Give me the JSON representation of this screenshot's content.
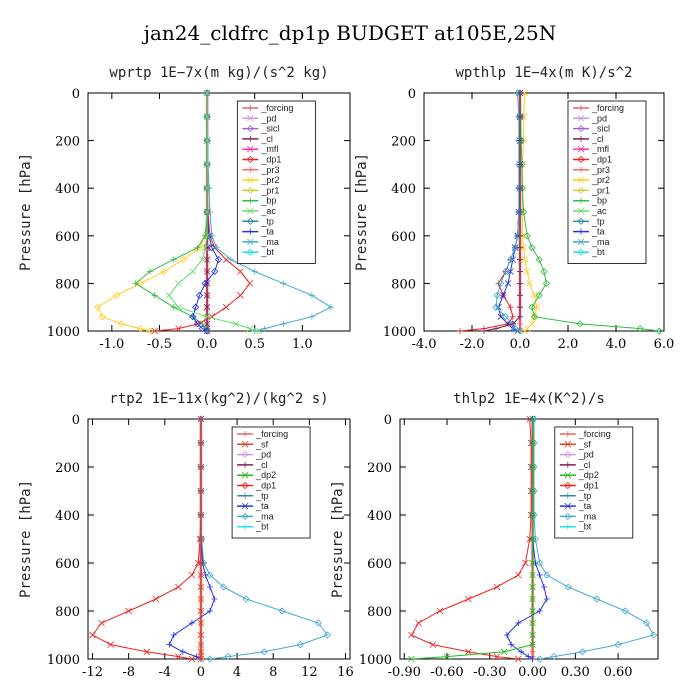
{
  "figure_title": "jan24_cldfrc_dp1p  BUDGET at105E,25N",
  "colors": {
    "_forcing": "#e06666",
    "_pd": "#cc99dd",
    "_sicl": "#9966cc",
    "_cl": "#7f1d5a",
    "_mfl": "#ff33aa",
    "_dp1": "#ee2222",
    "_pr3": "#ff6666",
    "_pr2": "#ffcc22",
    "_pr1": "#cccc33",
    "_bp": "#33bb44",
    "_ac": "#66dd66",
    "_tp": "#3388aa",
    "_ta": "#2233dd",
    "_ma": "#44aacc",
    "_bt": "#22ddee",
    "_sf": "#dd4422",
    "_dp2": "#22bb22"
  },
  "chart_data": [
    {
      "type": "line",
      "title": "wprtp   1E−7x(m kg)/(s^2 kg)",
      "ylabel": "Pressure [hPa]",
      "xlim": [
        -1.25,
        1.5
      ],
      "ylim": [
        1000,
        0
      ],
      "xticks": [
        -1.0,
        -0.5,
        0.0,
        0.5,
        1.0
      ],
      "xtick_labels": [
        "-1.0",
        "-0.5",
        "0.0",
        "0.5",
        "1.0"
      ],
      "yticks": [
        0,
        200,
        400,
        600,
        800,
        1000
      ],
      "legend_x": 0.57,
      "legend": [
        "_forcing",
        "_pd",
        "_sicl",
        "_cl",
        "_mfl",
        "_dp1",
        "_pr3",
        "_pr2",
        "_pr1",
        "_bp",
        "_ac",
        "_tp",
        "_ta",
        "_ma",
        "_bt"
      ],
      "pressure": [
        0,
        100,
        200,
        300,
        400,
        500,
        600,
        650,
        700,
        750,
        800,
        850,
        900,
        940,
        970,
        990,
        1000
      ],
      "series": [
        {
          "name": "_forcing",
          "values": [
            0,
            0,
            0,
            0,
            0,
            0,
            0,
            0,
            0,
            0,
            0,
            0,
            0,
            0,
            0,
            0,
            0
          ]
        },
        {
          "name": "_cl",
          "values": [
            0,
            0,
            0,
            0,
            0,
            0,
            0,
            0,
            0,
            0,
            0,
            0,
            0,
            0,
            0,
            0,
            0
          ]
        },
        {
          "name": "_pr2",
          "values": [
            0,
            0,
            0,
            0,
            0,
            0,
            -0.02,
            -0.08,
            -0.25,
            -0.45,
            -0.7,
            -0.95,
            -1.15,
            -1.1,
            -0.9,
            -0.7,
            -0.6
          ]
        },
        {
          "name": "_bp",
          "values": [
            0,
            0,
            0,
            0,
            0,
            0,
            -0.02,
            -0.1,
            -0.35,
            -0.6,
            -0.75,
            -0.55,
            -0.35,
            -0.15,
            -0.05,
            0,
            0
          ]
        },
        {
          "name": "_dp1",
          "values": [
            0,
            0,
            0,
            0,
            0,
            0.01,
            0.03,
            0.08,
            0.2,
            0.35,
            0.45,
            0.35,
            0.2,
            0.05,
            -0.1,
            -0.3,
            -0.55
          ]
        },
        {
          "name": "_ta",
          "values": [
            0,
            0,
            0,
            0,
            0,
            0,
            0.02,
            0.05,
            0.12,
            0.08,
            -0.02,
            -0.08,
            -0.12,
            -0.15,
            -0.1,
            -0.05,
            0
          ]
        },
        {
          "name": "_ma",
          "values": [
            0,
            0,
            0.01,
            0.01,
            0.02,
            0.03,
            0.05,
            0.1,
            0.25,
            0.5,
            0.8,
            1.1,
            1.3,
            1.1,
            0.8,
            0.6,
            0.5
          ]
        },
        {
          "name": "_ac",
          "values": [
            0,
            0,
            0,
            0,
            0,
            0,
            0,
            -0.02,
            -0.05,
            -0.15,
            -0.3,
            -0.4,
            -0.3,
            0,
            0.3,
            0.45,
            0.55
          ]
        }
      ]
    },
    {
      "type": "line",
      "title": "wpthlp   1E−4x(m K)/s^2",
      "ylabel": "Pressure [hPa]",
      "xlim": [
        -4.0,
        6.0
      ],
      "ylim": [
        1000,
        0
      ],
      "xticks": [
        -4,
        -2,
        0,
        2,
        4,
        6
      ],
      "xtick_labels": [
        "-4.0",
        "-2.0",
        "0.0",
        "2.0",
        "4.0",
        "6.0"
      ],
      "yticks": [
        0,
        200,
        400,
        600,
        800,
        1000
      ],
      "legend_x": 0.6,
      "legend": [
        "_forcing",
        "_pd",
        "_sicl",
        "_cl",
        "_mfl",
        "_dp1",
        "_pr3",
        "_pr2",
        "_pr1",
        "_bp",
        "_ac",
        "_tp",
        "_ta",
        "_ma",
        "_bt"
      ],
      "pressure": [
        0,
        100,
        200,
        300,
        400,
        500,
        600,
        650,
        700,
        750,
        800,
        850,
        900,
        940,
        970,
        990,
        1000
      ],
      "series": [
        {
          "name": "_forcing",
          "values": [
            0,
            0,
            0,
            0,
            0,
            0,
            0,
            0,
            0,
            0,
            0,
            0,
            0,
            0,
            0,
            0,
            0
          ]
        },
        {
          "name": "_pr2",
          "values": [
            0.2,
            0.15,
            0.15,
            0.1,
            0.1,
            0.1,
            0.1,
            0.15,
            0.2,
            0.3,
            0.4,
            0.6,
            0.7,
            0.6,
            0.5,
            0.3,
            0.2
          ]
        },
        {
          "name": "_bp",
          "values": [
            0,
            0.02,
            0.05,
            0.08,
            0.1,
            0.15,
            0.3,
            0.5,
            0.8,
            1.0,
            1.1,
            0.8,
            0.5,
            0.6,
            2.5,
            5.0,
            5.8
          ]
        },
        {
          "name": "_dp1",
          "values": [
            0,
            0,
            0,
            0,
            -0.02,
            -0.05,
            -0.1,
            -0.2,
            -0.4,
            -0.6,
            -0.9,
            -0.7,
            -0.4,
            -0.3,
            -0.5,
            -1.5,
            -2.5
          ]
        },
        {
          "name": "_ta",
          "values": [
            0,
            0,
            0,
            0,
            0,
            -0.05,
            -0.1,
            -0.2,
            -0.3,
            -0.4,
            -0.5,
            -0.7,
            -0.9,
            -0.8,
            -0.5,
            -0.3,
            -0.1
          ]
        },
        {
          "name": "_ma",
          "values": [
            -0.1,
            -0.05,
            -0.05,
            -0.05,
            -0.05,
            -0.05,
            -0.1,
            -0.2,
            -0.4,
            -0.6,
            -0.8,
            -0.95,
            -1.0,
            -0.6,
            -0.3,
            -0.2,
            0
          ]
        },
        {
          "name": "_cl",
          "values": [
            0,
            0,
            0,
            0,
            0,
            0,
            0,
            0,
            0,
            0,
            0,
            0,
            0,
            0,
            -0.3,
            -1.0,
            -1.5
          ]
        }
      ]
    },
    {
      "type": "line",
      "title": "rtp2   1E−11x(kg^2)/(kg^2 s)",
      "ylabel": "Pressure [hPa]",
      "xlim": [
        -12.5,
        16.5
      ],
      "ylim": [
        1000,
        0
      ],
      "xticks": [
        -12,
        -8,
        -4,
        0,
        4,
        8,
        12,
        16
      ],
      "xtick_labels": [
        "-12",
        "-8",
        "-4",
        "0",
        "4",
        "8",
        "12",
        "16"
      ],
      "yticks": [
        0,
        200,
        400,
        600,
        800,
        1000
      ],
      "legend_x": 0.55,
      "legend": [
        "_forcing",
        "_sf",
        "_pd",
        "_cl",
        "_dp2",
        "_dp1",
        "_tp",
        "_ta",
        "_ma",
        "_bt"
      ],
      "pressure": [
        0,
        100,
        200,
        300,
        400,
        500,
        600,
        650,
        700,
        750,
        800,
        850,
        900,
        940,
        970,
        990,
        1000
      ],
      "series": [
        {
          "name": "_forcing",
          "values": [
            0,
            0,
            0,
            0,
            0,
            0,
            0,
            0,
            0,
            0,
            0,
            0,
            0,
            0,
            0,
            0,
            0
          ]
        },
        {
          "name": "_dp1",
          "values": [
            0,
            0,
            0,
            0,
            0,
            -0.1,
            -0.3,
            -1.0,
            -2.5,
            -5.0,
            -8.0,
            -11.0,
            -12.0,
            -10.0,
            -6.0,
            -2.5,
            -1.0
          ]
        },
        {
          "name": "_ma",
          "values": [
            0,
            0,
            0,
            0,
            0,
            0.1,
            0.3,
            1.0,
            2.5,
            5.0,
            9.0,
            13.0,
            14.0,
            11.0,
            7.0,
            3.0,
            1.0
          ]
        },
        {
          "name": "_ta",
          "values": [
            0,
            0,
            0,
            0,
            0,
            0,
            0.2,
            0.5,
            1.0,
            1.5,
            1.0,
            -1.0,
            -3.0,
            -3.5,
            -2.0,
            -0.5,
            0
          ]
        },
        {
          "name": "_sf",
          "values": [
            0,
            0,
            0,
            0,
            0,
            0,
            0,
            0,
            0,
            0,
            0,
            0,
            0,
            0,
            0,
            0,
            0
          ]
        }
      ]
    },
    {
      "type": "line",
      "title": "thlp2   1E−4x(K^2)/s",
      "ylabel": "Pressure [hPa]",
      "xlim": [
        -0.93,
        0.88
      ],
      "ylim": [
        1000,
        0
      ],
      "xticks": [
        -0.9,
        -0.6,
        -0.3,
        0.0,
        0.3,
        0.6
      ],
      "xtick_labels": [
        "-0.90",
        "-0.60",
        "-0.30",
        "0.00",
        "0.30",
        "0.60"
      ],
      "yticks": [
        0,
        200,
        400,
        600,
        800,
        1000
      ],
      "legend_x": 0.6,
      "legend": [
        "_forcing",
        "_sf",
        "_pd",
        "_cl",
        "_dp2",
        "_dp1",
        "_tp",
        "_ta",
        "_ma",
        "_bt"
      ],
      "pressure": [
        0,
        100,
        200,
        300,
        400,
        500,
        600,
        650,
        700,
        750,
        800,
        850,
        900,
        940,
        970,
        990,
        1000
      ],
      "series": [
        {
          "name": "_forcing",
          "values": [
            0,
            0,
            0,
            0,
            0,
            0,
            0,
            0,
            0,
            0,
            0,
            0,
            0,
            0,
            0,
            0,
            0
          ]
        },
        {
          "name": "_dp1",
          "values": [
            -0.02,
            -0.01,
            -0.01,
            -0.01,
            -0.01,
            -0.02,
            -0.05,
            -0.1,
            -0.25,
            -0.45,
            -0.65,
            -0.8,
            -0.85,
            -0.7,
            -0.45,
            -0.25,
            -0.1
          ]
        },
        {
          "name": "_ma",
          "values": [
            0.01,
            0.01,
            0.01,
            0.01,
            0.01,
            0.02,
            0.05,
            0.1,
            0.25,
            0.45,
            0.65,
            0.8,
            0.85,
            0.6,
            0.35,
            0.15,
            0.05
          ]
        },
        {
          "name": "_ta",
          "values": [
            0,
            0,
            0,
            0,
            0,
            0,
            0.02,
            0.05,
            0.08,
            0.1,
            0.05,
            -0.1,
            -0.18,
            -0.15,
            -0.08,
            -0.03,
            0
          ]
        },
        {
          "name": "_dp2",
          "values": [
            0,
            0,
            0,
            0,
            0,
            0,
            0,
            0,
            0,
            0,
            0,
            0,
            0,
            0,
            -0.2,
            -0.6,
            -0.85
          ]
        }
      ]
    }
  ]
}
